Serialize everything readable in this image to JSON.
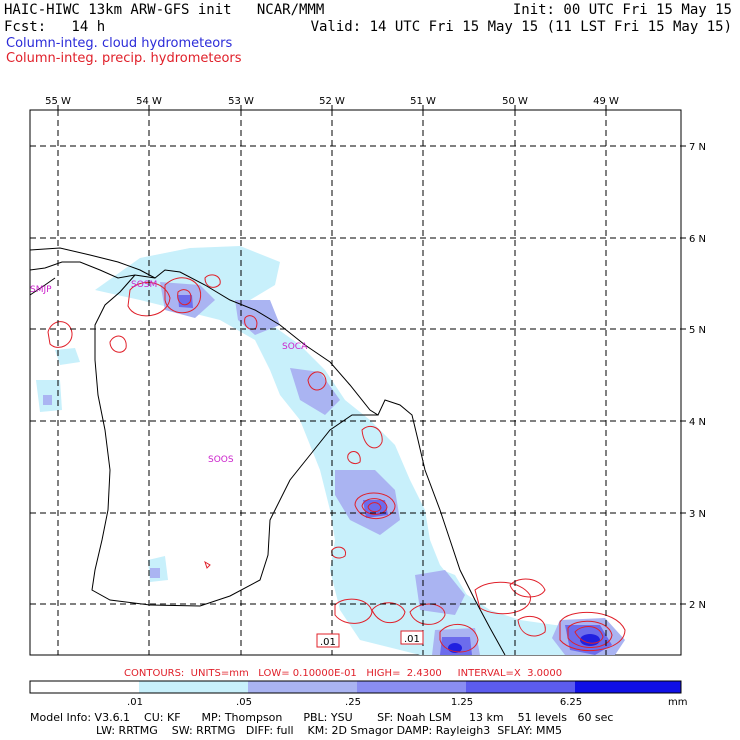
{
  "header": {
    "title": "HAIC-HIWC 13km ARW-GFS init   NCAR/MMM",
    "init": "Init: 00 UTC Fri 15 May 15",
    "fcst": "Fcst:   14 h",
    "valid": "Valid: 14 UTC Fri 15 May 15 (11 LST Fri 15 May 15)",
    "legend_cloud": "Column-integ. cloud hydrometeors",
    "legend_precip": "Column-integ. precip. hydrometeors"
  },
  "map": {
    "lon_labels": [
      "55 W",
      "54 W",
      "53 W",
      "52 W",
      "51 W",
      "50 W",
      "49 W"
    ],
    "lat_labels": [
      "7 N",
      "6 N",
      "5 N",
      "4 N",
      "3 N",
      "2 N"
    ],
    "stations": [
      "SMJP",
      "SOSM",
      "SOCA",
      "SOOS"
    ],
    "contour_labels": [
      ".01",
      ".01"
    ],
    "contour_info": "CONTOURS:  UNITS=mm   LOW= 0.10000E-01   HIGH=  2.4300     INTERVAL=X  3.0000"
  },
  "colorbar": {
    "ticks": [
      ".01",
      ".05",
      ".25",
      "1.25",
      "6.25"
    ],
    "unit": "mm",
    "colors": [
      "#ffffff",
      "#c8f0fb",
      "#aab4f2",
      "#8a8ef2",
      "#5c5cee",
      "#1010e6"
    ]
  },
  "footer": {
    "line1": "Model Info: V3.6.1    CU: KF      MP: Thompson      PBL: YSU       SF: Noah LSM     13 km    51 levels   60 sec",
    "line2": "LW: RRTMG    SW: RRTMG   DIFF: full    KM: 2D Smagor DAMP: Rayleigh3  SFLAY: MM5"
  }
}
